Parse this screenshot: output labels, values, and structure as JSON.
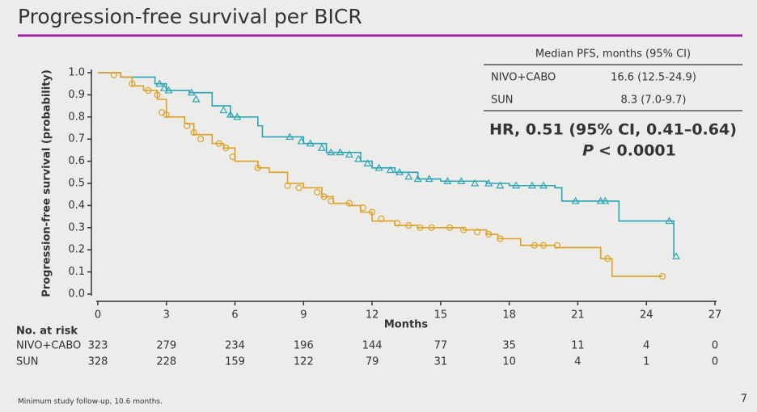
{
  "title": "Progression-free survival per BICR",
  "footnote": "Minimum study follow-up, 10.6 months.",
  "page_number": "7",
  "median_table": {
    "header": "Median PFS, months (95% CI)",
    "rows": [
      [
        "NIVO+CABO",
        "16.6 (12.5-24.9)"
      ],
      [
        "SUN",
        "8.3 (7.0-9.7)"
      ]
    ]
  },
  "hazard_ratio": {
    "text": "HR, 0.51 (95% CI, 0.41–0.64)",
    "p_label": "P",
    "p_value": "< 0.0001"
  },
  "at_risk": {
    "title": "No. at risk",
    "rows": [
      {
        "name": "NIVO+CABO",
        "color": "#2aa5b5",
        "values": [
          323,
          279,
          234,
          196,
          144,
          77,
          35,
          11,
          4,
          0
        ]
      },
      {
        "name": "SUN",
        "color": "#dfa024",
        "values": [
          328,
          228,
          159,
          122,
          79,
          31,
          10,
          4,
          1,
          0
        ]
      }
    ]
  },
  "chart_data": {
    "type": "step",
    "x_label": "Months",
    "y_label": "Progression-free survival (probability)",
    "xlim": [
      0,
      27
    ],
    "xticks": [
      0,
      3,
      6,
      9,
      12,
      15,
      18,
      21,
      24,
      27
    ],
    "ylim": [
      0,
      1
    ],
    "yticks": [
      {
        "value": 0,
        "label": "0.0"
      },
      0.1,
      0.2,
      0.3,
      0.4,
      0.5,
      0.6,
      0.7,
      0.8,
      0.9,
      {
        "value": 1,
        "label": "1.0"
      }
    ],
    "series": [
      {
        "name": "NIVO+CABO",
        "color": "#2aa5b5",
        "marker": "triangle",
        "x": [
          0,
          1,
          2.5,
          3,
          4,
          5,
          5.8,
          6.9,
          7,
          7.2,
          8.5,
          9,
          10,
          11.5,
          12,
          13,
          14,
          15,
          17,
          18,
          20,
          20.3,
          22.5,
          22.8,
          25,
          25.2
        ],
        "values": [
          1,
          0.98,
          0.95,
          0.92,
          0.91,
          0.85,
          0.8,
          0.8,
          0.76,
          0.71,
          0.71,
          0.68,
          0.64,
          0.6,
          0.57,
          0.55,
          0.52,
          0.51,
          0.5,
          0.49,
          0.48,
          0.42,
          0.42,
          0.33,
          0.33,
          0.17
        ],
        "censored": {
          "x": [
            2.7,
            2.9,
            3.1,
            4.1,
            4.3,
            5.5,
            5.8,
            6.1,
            8.4,
            8.9,
            9.3,
            9.8,
            10.2,
            10.6,
            11,
            11.4,
            11.8,
            12.3,
            12.8,
            13.2,
            13.6,
            14,
            14.5,
            15.3,
            15.9,
            16.5,
            17.1,
            17.6,
            18.3,
            19,
            19.5,
            20.9,
            22,
            22.2,
            25,
            25.3
          ],
          "values": [
            0.95,
            0.93,
            0.92,
            0.91,
            0.88,
            0.83,
            0.81,
            0.8,
            0.71,
            0.69,
            0.68,
            0.66,
            0.64,
            0.64,
            0.63,
            0.61,
            0.59,
            0.57,
            0.56,
            0.55,
            0.53,
            0.52,
            0.52,
            0.51,
            0.51,
            0.5,
            0.5,
            0.49,
            0.49,
            0.49,
            0.49,
            0.42,
            0.42,
            0.42,
            0.33,
            0.17
          ]
        }
      },
      {
        "name": "SUN",
        "color": "#dfa024",
        "marker": "circle",
        "x": [
          0,
          1,
          1.5,
          2,
          2.6,
          3,
          3.8,
          4.2,
          5,
          5.5,
          6,
          7,
          7.5,
          8.3,
          9,
          9.8,
          10.3,
          11,
          11.5,
          12,
          13,
          14,
          16,
          17,
          17.5,
          18.5,
          20,
          22,
          22.5,
          24.7
        ],
        "values": [
          1,
          0.98,
          0.94,
          0.92,
          0.88,
          0.8,
          0.77,
          0.72,
          0.68,
          0.66,
          0.6,
          0.57,
          0.55,
          0.5,
          0.48,
          0.44,
          0.41,
          0.4,
          0.37,
          0.33,
          0.31,
          0.3,
          0.29,
          0.27,
          0.25,
          0.22,
          0.21,
          0.16,
          0.08,
          0.08
        ],
        "censored": {
          "x": [
            0.7,
            1.5,
            2.2,
            2.6,
            2.8,
            3,
            3.9,
            4.2,
            4.5,
            5.3,
            5.6,
            5.9,
            7,
            8.3,
            8.8,
            9.6,
            9.9,
            10.2,
            11,
            11.6,
            12,
            12.4,
            13.1,
            13.6,
            14.1,
            14.6,
            15.4,
            16,
            16.6,
            17.1,
            17.6,
            19.1,
            19.5,
            20.1,
            22.3,
            24.7
          ],
          "values": [
            0.99,
            0.95,
            0.92,
            0.9,
            0.82,
            0.81,
            0.76,
            0.73,
            0.7,
            0.68,
            0.66,
            0.62,
            0.57,
            0.49,
            0.48,
            0.46,
            0.44,
            0.42,
            0.41,
            0.39,
            0.37,
            0.34,
            0.32,
            0.31,
            0.3,
            0.3,
            0.3,
            0.29,
            0.28,
            0.27,
            0.25,
            0.22,
            0.22,
            0.22,
            0.16,
            0.08
          ]
        }
      }
    ]
  }
}
